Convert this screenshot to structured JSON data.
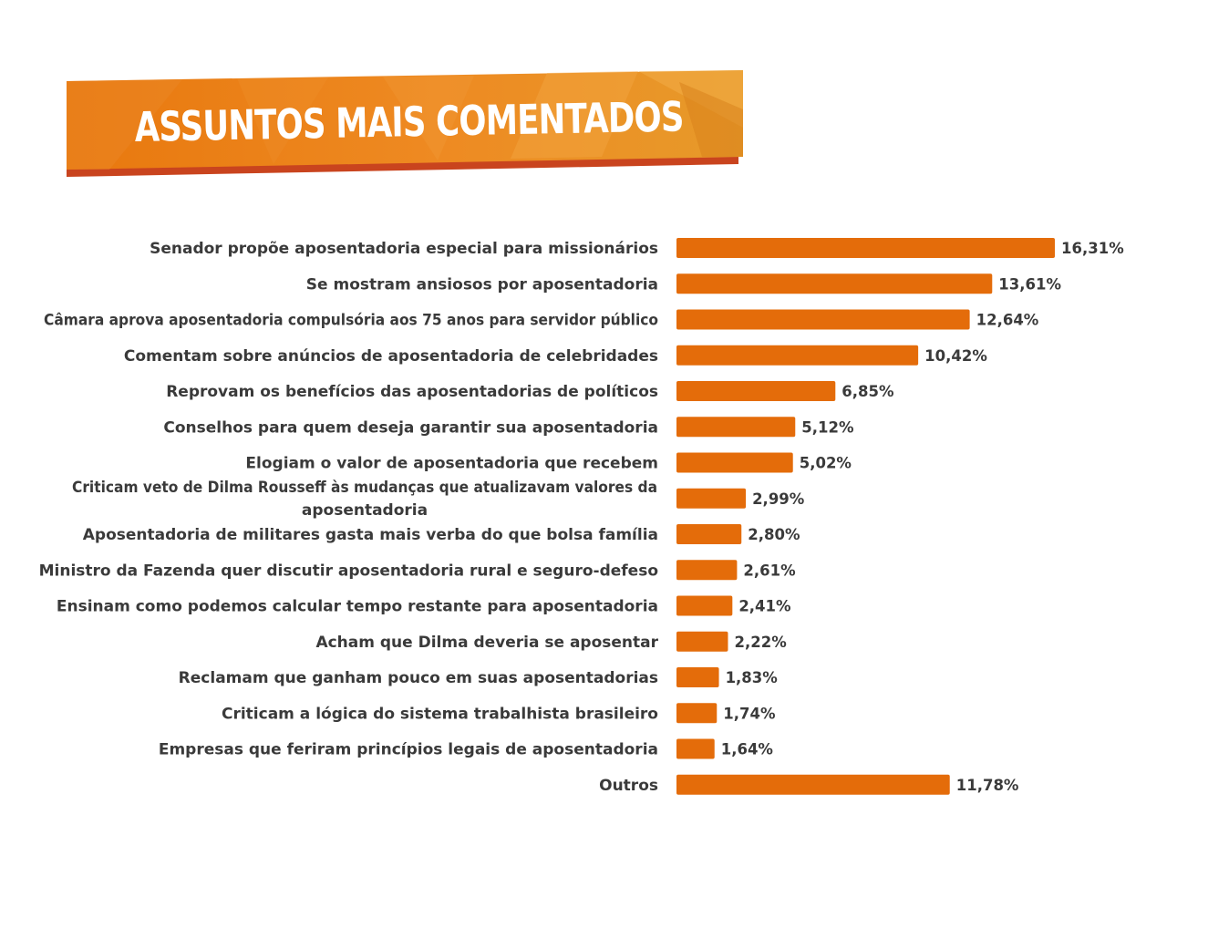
{
  "header": {
    "title": "ASSUNTOS MAIS COMENTADOS"
  },
  "colors": {
    "bar": "#E46C0A",
    "banner_main": "#E8780E",
    "banner_light": "#F4A742",
    "banner_shadow": "#C9441E",
    "text": "#3A3A3A"
  },
  "chart_data": {
    "type": "bar",
    "orientation": "horizontal",
    "title": "ASSUNTOS MAIS COMENTADOS",
    "xlabel": "",
    "ylabel": "",
    "grid": false,
    "legend": "none",
    "xlim": [
      0,
      16.31
    ],
    "categories": [
      "Senador propõe aposentadoria especial para missionários",
      "Se mostram ansiosos por aposentadoria",
      "Câmara aprova aposentadoria compulsória aos 75 anos para servidor público",
      "Comentam sobre anúncios de aposentadoria de celebridades",
      "Reprovam os benefícios das aposentadorias de políticos",
      "Conselhos para quem deseja garantir sua aposentadoria",
      "Elogiam o valor de aposentadoria que recebem",
      "Criticam veto de Dilma Rousseff às mudanças que atualizavam valores da aposentadoria",
      "Aposentadoria de militares gasta mais verba do que bolsa família",
      "Ministro da Fazenda quer discutir aposentadoria rural e seguro-defeso",
      "Ensinam como podemos calcular tempo restante para aposentadoria",
      "Acham que Dilma deveria se aposentar",
      "Reclamam que ganham pouco em suas aposentadorias",
      "Criticam a lógica do sistema trabalhista brasileiro",
      "Empresas que feriram princípios legais de aposentadoria",
      "Outros"
    ],
    "values": [
      16.31,
      13.61,
      12.64,
      10.42,
      6.85,
      5.12,
      5.02,
      2.99,
      2.8,
      2.61,
      2.41,
      2.22,
      1.83,
      1.74,
      1.64,
      11.78
    ],
    "value_labels": [
      "16,31%",
      "13,61%",
      "12,64%",
      "10,42%",
      "6,85%",
      "5,12%",
      "5,02%",
      "2,99%",
      "2,80%",
      "2,61%",
      "2,41%",
      "2,22%",
      "1,83%",
      "1,74%",
      "1,64%",
      "11,78%"
    ]
  }
}
